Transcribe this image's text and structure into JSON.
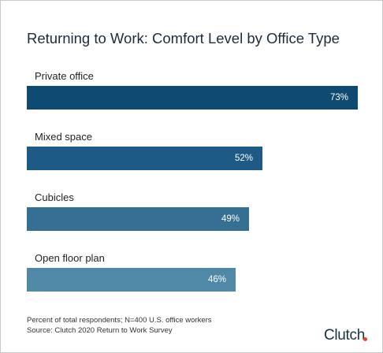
{
  "chart_data": {
    "type": "bar",
    "orientation": "horizontal",
    "title": "Returning to Work: Comfort Level by Office Type",
    "categories": [
      "Private office",
      "Mixed space",
      "Cubicles",
      "Open floor plan"
    ],
    "values": [
      73,
      52,
      49,
      46
    ],
    "value_labels": [
      "73%",
      "52%",
      "49%",
      "46%"
    ],
    "bar_colors": [
      "#0e4a72",
      "#1d5a85",
      "#356f94",
      "#5088a8"
    ],
    "xlim": [
      0,
      73
    ],
    "grid": false
  },
  "footnote": {
    "line1": "Percent of total respondents; N=400 U.S. office workers",
    "line2": "Source: Clutch 2020 Return to Work Survey"
  },
  "brand": {
    "name": "Clutch",
    "dot_color": "#e8452c"
  }
}
